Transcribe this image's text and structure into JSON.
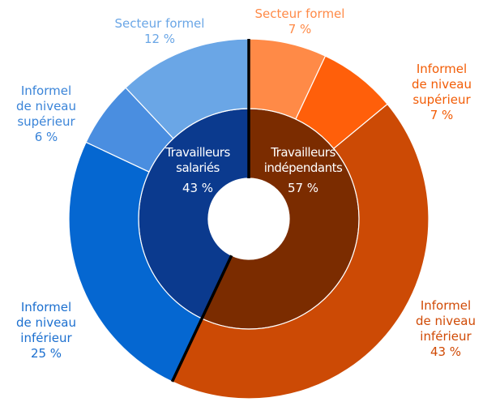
{
  "chart_data": {
    "type": "sunburst",
    "inner": {
      "categories": [
        "Travailleurs\nindépendants",
        "Travailleurs\nsalariés"
      ],
      "values": [
        57,
        43
      ],
      "value_labels": [
        "57 %",
        "43 %"
      ],
      "colors": [
        "#7b2c00",
        "#0b3a8e"
      ]
    },
    "outer": {
      "categories": [
        "Secteur formel",
        "Informel\nde niveau\nsupérieur",
        "Informel\nde niveau\ninférieur",
        "Informel\nde niveau\ninférieur",
        "Informel\nde niveau\nsupérieur",
        "Secteur formel"
      ],
      "values": [
        7,
        7,
        43,
        25,
        6,
        12
      ],
      "value_labels": [
        "7 %",
        "7 %",
        "43 %",
        "25 %",
        "6 %",
        "12 %"
      ],
      "colors": [
        "#ff8a47",
        "#ff5f0a",
        "#cc4a05",
        "#0567d1",
        "#4a8ee0",
        "#6aa6e6"
      ],
      "label_colors": [
        "#ff8a47",
        "#f25c05",
        "#d04a05",
        "#1b6fcf",
        "#3a84d8",
        "#6aa6e6"
      ]
    }
  }
}
